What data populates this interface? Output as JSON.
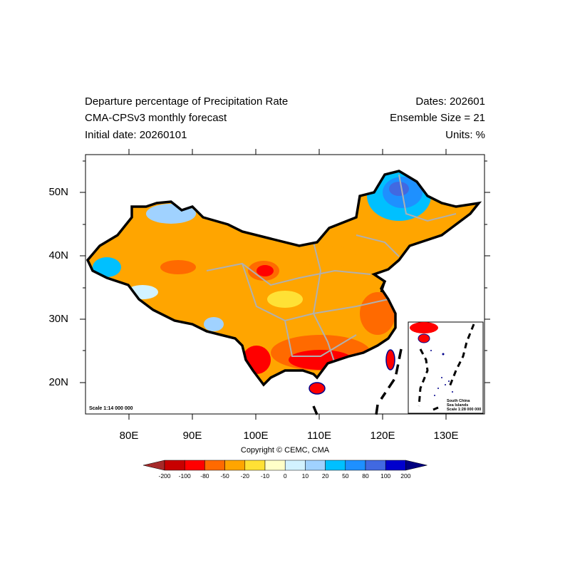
{
  "title": {
    "left": [
      "Departure percentage of Precipitation Rate",
      "CMA-CPSv3 monthly forecast",
      "Initial date: 20260101"
    ],
    "right": [
      "Dates: 202601",
      "Ensemble Size = 21",
      "Units: %"
    ]
  },
  "axes": {
    "lon_labels": [
      "80E",
      "90E",
      "100E",
      "110E",
      "120E",
      "130E"
    ],
    "lat_labels": [
      "50N",
      "40N",
      "30N",
      "20N"
    ]
  },
  "map": {
    "scale_main": "Scale 1:14 000 000",
    "inset_title": [
      "South China",
      "Sea Islands"
    ],
    "inset_scale": "Scale 1:28 000 000"
  },
  "copyright": "Copyright © CEMC, CMA",
  "colorbar": {
    "labels": [
      "-200",
      "-100",
      "-80",
      "-50",
      "-20",
      "-10",
      "0",
      "10",
      "20",
      "50",
      "80",
      "100",
      "200"
    ],
    "colors": [
      "#a52a2a",
      "#c80000",
      "#ff0000",
      "#ff6a00",
      "#ffa500",
      "#ffe135",
      "#ffffc8",
      "#d2f2ff",
      "#a0d2ff",
      "#00c0ff",
      "#1e90ff",
      "#4169e1",
      "#0000cd",
      "#000080"
    ]
  }
}
